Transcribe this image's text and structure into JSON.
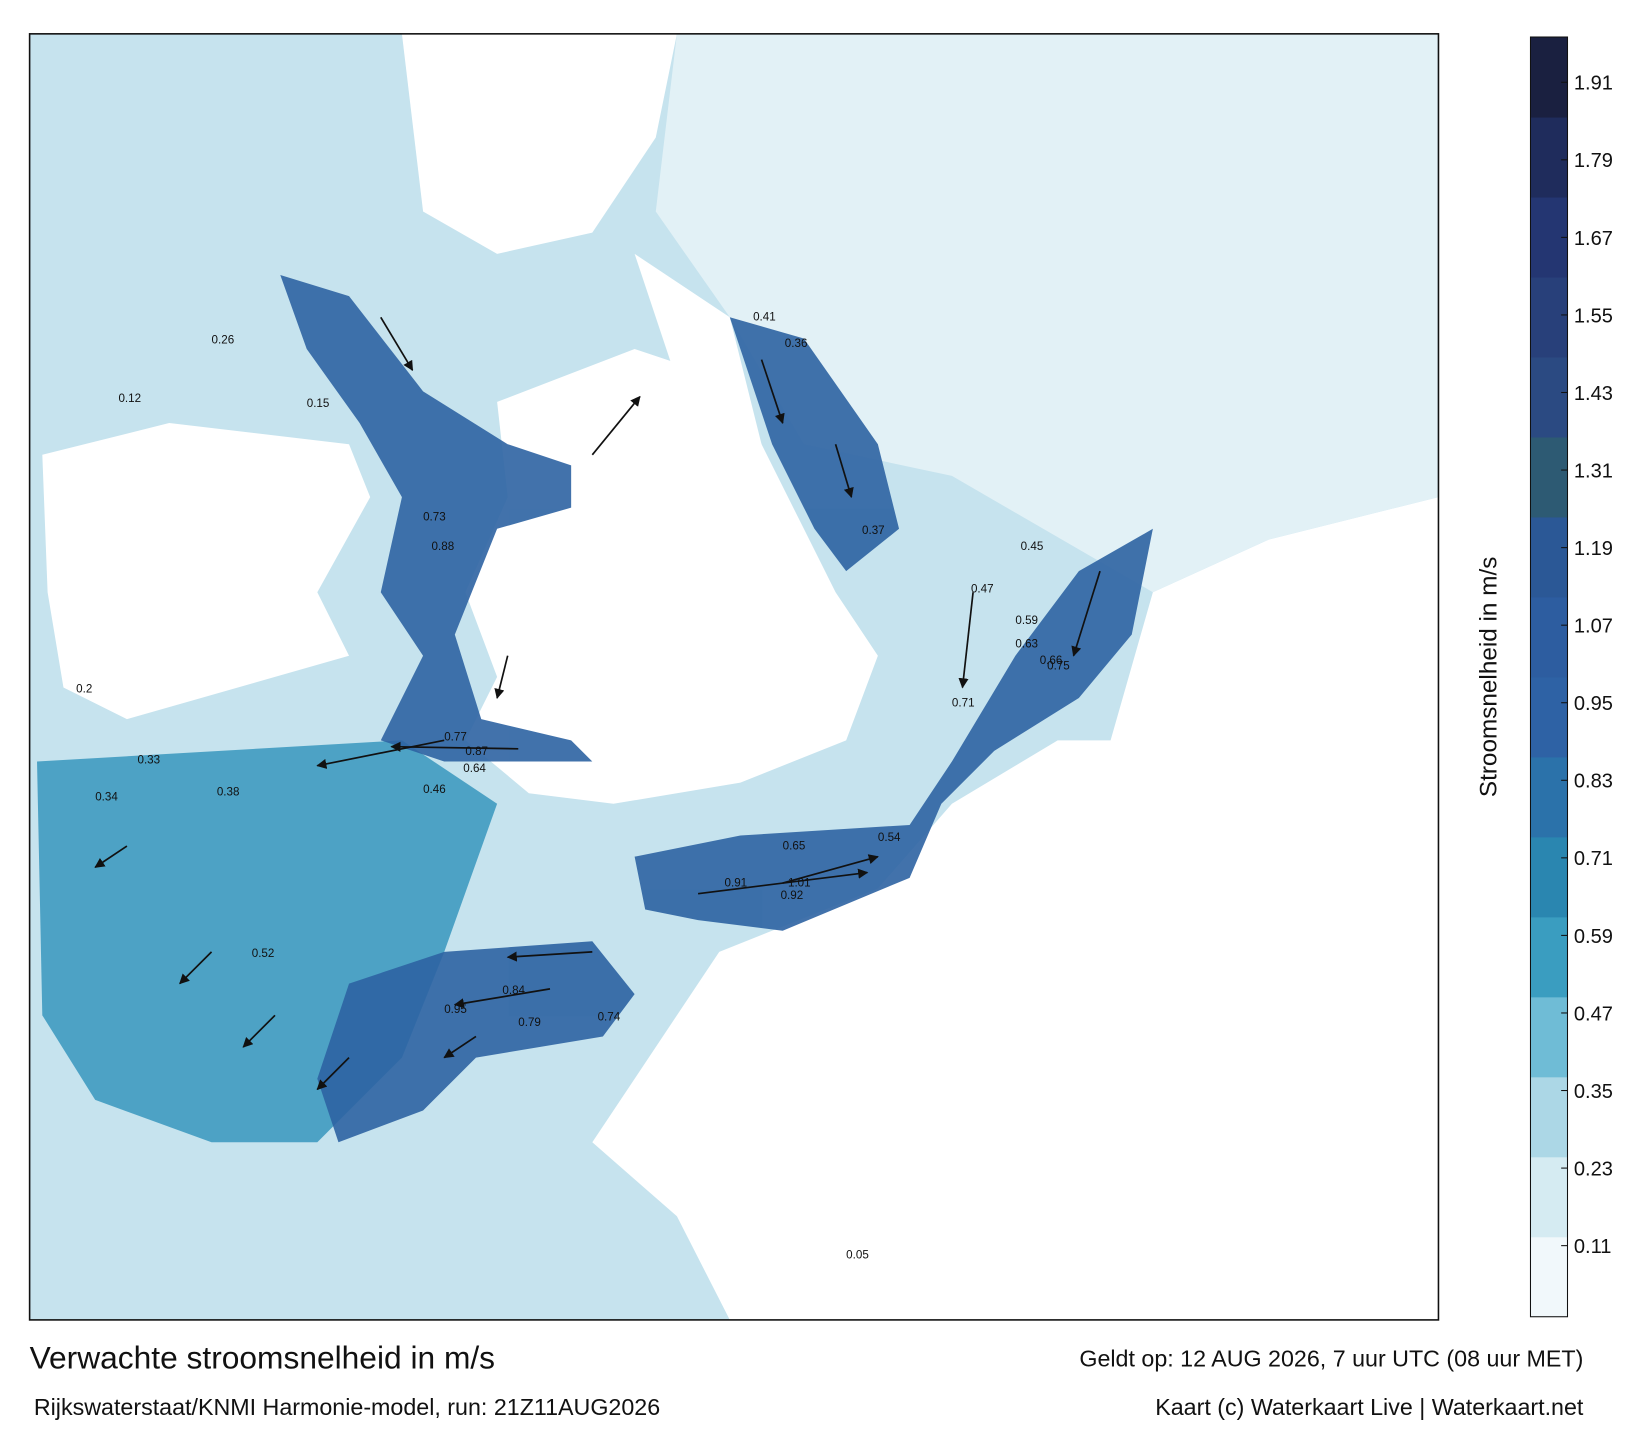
{
  "map": {
    "title": "Verwachte stroomsnelheid in m/s",
    "valid_time": "Geldt op: 12 AUG 2026, 7 uur UTC (08 uur MET)",
    "source": "Rijkswaterstaat/KNMI Harmonie-model, run: 21Z11AUG2026",
    "credit": "Kaart (c) Waterkaart Live | Waterkaart.net",
    "point_labels": [
      "0.77",
      "0.87",
      "0.64",
      "0.33",
      "0.34",
      "0.38",
      "0.46",
      "0.52",
      "0.84",
      "0.95",
      "0.79",
      "0.74",
      "0.65",
      "0.91",
      "1.01",
      "0.92",
      "0.54",
      "0.47",
      "0.59",
      "0.63",
      "0.66",
      "0.75",
      "0.71",
      "0.45",
      "0.37",
      "0.41",
      "0.36",
      "0.73",
      "0.88",
      "0.26",
      "0.12",
      "0.15",
      "0.2",
      "0.05"
    ]
  },
  "colorbar": {
    "label": "Stroomsnelheid in m/s",
    "range": [
      0,
      1.98
    ],
    "ticks": [
      0.11,
      0.23,
      0.35,
      0.47,
      0.59,
      0.71,
      0.83,
      0.95,
      1.07,
      1.19,
      1.31,
      1.43,
      1.55,
      1.67,
      1.79,
      1.91
    ],
    "colors": [
      "#f1f8fb",
      "#d5ebf2",
      "#acd7e6",
      "#6fbcd6",
      "#3a9dc0",
      "#2a86b0",
      "#2b72aa",
      "#2e62a5",
      "#2d5da0",
      "#2b5896",
      "#2d5a73",
      "#2b4a82",
      "#28407a",
      "#243672",
      "#1f2c5c",
      "#1a2040"
    ]
  }
}
